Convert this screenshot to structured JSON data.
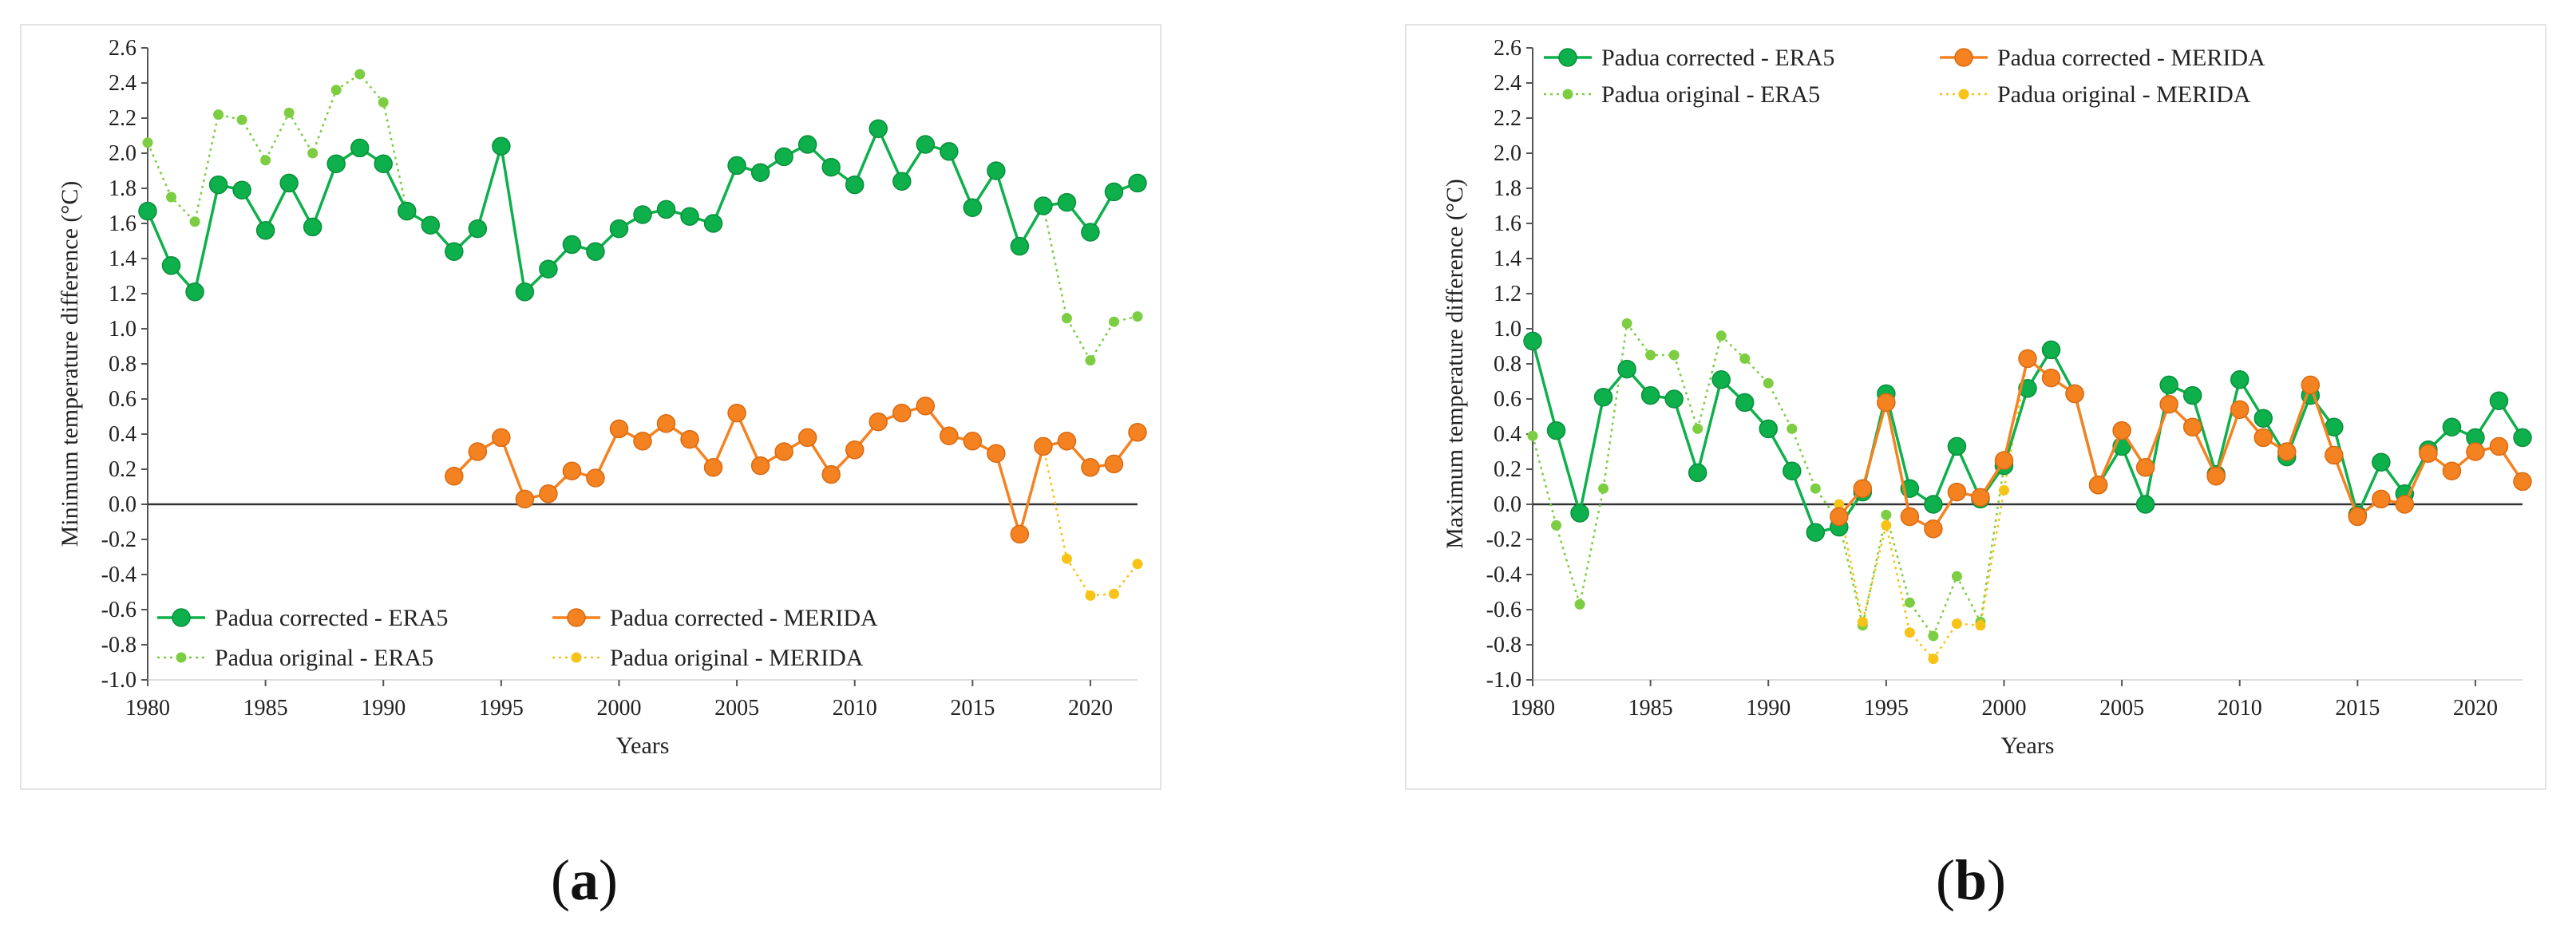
{
  "colors": {
    "era5_corrected": "#0db04b",
    "merida_corrected": "#f58220",
    "era5_original": "#7ccd41",
    "merida_original": "#f7c316",
    "axis": "#555555",
    "zero_line": "#333333"
  },
  "labels": {
    "a": "(a)",
    "a_letter": "a",
    "b": "(b)",
    "b_letter": "b"
  },
  "chart_data": [
    {
      "type": "line",
      "panel": "a",
      "xlabel": "Years",
      "ylabel": "Minimum temperature difference (°C)",
      "xlim": [
        1980,
        2022
      ],
      "ylim": [
        -1.0,
        2.6
      ],
      "y_step": 0.2,
      "x_ticks": [
        1980,
        1985,
        1990,
        1995,
        2000,
        2005,
        2010,
        2015,
        2020
      ],
      "y_ticks": [
        "-1.0",
        "-0.8",
        "-0.6",
        "-0.4",
        "-0.2",
        "0.0",
        "0.2",
        "0.4",
        "0.6",
        "0.8",
        "1.0",
        "1.2",
        "1.4",
        "1.6",
        "1.8",
        "2.0",
        "2.2",
        "2.4",
        "2.6"
      ],
      "grid": false,
      "legend_position": "bottom-left",
      "series": [
        {
          "name": "Padua corrected - ERA5",
          "style": "corrected-era5",
          "start": 1980,
          "values": [
            1.67,
            1.36,
            1.21,
            1.82,
            1.79,
            1.56,
            1.83,
            1.58,
            1.94,
            2.03,
            1.94,
            1.67,
            1.59,
            1.44,
            1.57,
            2.04,
            1.21,
            1.34,
            1.48,
            1.44,
            1.57,
            1.65,
            1.68,
            1.64,
            1.6,
            1.93,
            1.89,
            1.98,
            2.05,
            1.92,
            1.82,
            2.14,
            1.84,
            2.05,
            2.01,
            1.69,
            1.9,
            1.47,
            1.7,
            1.72,
            1.55,
            1.78,
            1.83
          ]
        },
        {
          "name": "Padua corrected - MERIDA",
          "style": "corrected-merida",
          "start": 1993,
          "values": [
            0.16,
            0.3,
            0.38,
            0.03,
            0.06,
            0.19,
            0.15,
            0.43,
            0.36,
            0.46,
            0.37,
            0.21,
            0.52,
            0.22,
            0.3,
            0.38,
            0.17,
            0.31,
            0.47,
            0.52,
            0.56,
            0.39,
            0.36,
            0.29,
            -0.17,
            0.33,
            0.36,
            0.21,
            0.23,
            0.41
          ]
        },
        {
          "name": "Padua original - ERA5",
          "style": "original-era5",
          "start": 1980,
          "values": [
            2.06,
            1.75,
            1.61,
            2.22,
            2.19,
            1.96,
            2.23,
            2.0,
            2.36,
            2.45,
            2.29,
            1.67,
            1.59,
            1.44,
            1.57,
            2.04,
            1.21,
            1.34,
            1.48,
            1.44,
            1.57,
            1.65,
            1.68,
            1.64,
            1.6,
            1.93,
            1.89,
            1.98,
            2.05,
            1.92,
            1.82,
            2.14,
            1.84,
            2.05,
            2.01,
            1.69,
            1.9,
            1.47,
            1.7,
            1.06,
            0.82,
            1.04,
            1.07
          ]
        },
        {
          "name": "Padua original - MERIDA",
          "style": "original-merida",
          "start": 1993,
          "values": [
            0.16,
            0.3,
            0.38,
            0.03,
            0.06,
            0.19,
            0.15,
            0.43,
            0.36,
            0.46,
            0.37,
            0.21,
            0.52,
            0.22,
            0.3,
            0.38,
            0.17,
            0.31,
            0.47,
            0.52,
            0.56,
            0.39,
            0.36,
            0.29,
            -0.17,
            0.33,
            -0.31,
            -0.52,
            -0.51,
            -0.34
          ]
        }
      ]
    },
    {
      "type": "line",
      "panel": "b",
      "xlabel": "Years",
      "ylabel": "Maximum temperature difference (°C)",
      "xlim": [
        1980,
        2022
      ],
      "ylim": [
        -1.0,
        2.6
      ],
      "y_step": 0.2,
      "x_ticks": [
        1980,
        1985,
        1990,
        1995,
        2000,
        2005,
        2010,
        2015,
        2020
      ],
      "y_ticks": [
        "-1.0",
        "-0.8",
        "-0.6",
        "-0.4",
        "-0.2",
        "0.0",
        "0.2",
        "0.4",
        "0.6",
        "0.8",
        "1.0",
        "1.2",
        "1.4",
        "1.6",
        "1.8",
        "2.0",
        "2.2",
        "2.4",
        "2.6"
      ],
      "grid": false,
      "legend_position": "top-left",
      "series": [
        {
          "name": "Padua corrected - ERA5",
          "style": "corrected-era5",
          "start": 1980,
          "values": [
            0.93,
            0.42,
            -0.05,
            0.61,
            0.77,
            0.62,
            0.6,
            0.18,
            0.71,
            0.58,
            0.43,
            0.19,
            -0.16,
            -0.13,
            0.07,
            0.63,
            0.09,
            0.0,
            0.33,
            0.03,
            0.22,
            0.66,
            0.88,
            0.63,
            0.11,
            0.33,
            0.0,
            0.68,
            0.62,
            0.17,
            0.71,
            0.49,
            0.27,
            0.62,
            0.44,
            -0.06,
            0.24,
            0.06,
            0.31,
            0.44,
            0.38,
            0.59,
            0.38
          ]
        },
        {
          "name": "Padua corrected - MERIDA",
          "style": "corrected-merida",
          "start": 1993,
          "values": [
            -0.07,
            0.09,
            0.58,
            -0.07,
            -0.14,
            0.07,
            0.04,
            0.25,
            0.83,
            0.72,
            0.63,
            0.11,
            0.42,
            0.21,
            0.57,
            0.44,
            0.16,
            0.54,
            0.38,
            0.3,
            0.68,
            0.28,
            -0.07,
            0.03,
            0.0,
            0.29,
            0.19,
            0.3,
            0.33,
            0.13
          ]
        },
        {
          "name": "Padua original - ERA5",
          "style": "original-era5",
          "start": 1980,
          "values": [
            0.39,
            -0.12,
            -0.57,
            0.09,
            1.03,
            0.85,
            0.85,
            0.43,
            0.96,
            0.83,
            0.69,
            0.43,
            0.09,
            -0.1,
            -0.69,
            -0.06,
            -0.56,
            -0.75,
            -0.41,
            -0.67,
            0.22,
            0.66,
            0.88,
            0.63,
            0.11,
            0.33,
            0.0,
            0.68,
            0.62,
            0.17,
            0.71,
            0.49,
            0.27,
            0.62,
            0.44,
            -0.06,
            0.24,
            0.06,
            0.31,
            0.44,
            0.38,
            0.59,
            0.38
          ]
        },
        {
          "name": "Padua original - MERIDA",
          "style": "original-merida",
          "start": 1993,
          "values": [
            0.0,
            -0.67,
            -0.12,
            -0.73,
            -0.88,
            -0.68,
            -0.69,
            0.08,
            0.83,
            0.72,
            0.63,
            0.11,
            0.42,
            0.21,
            0.57,
            0.44,
            0.16,
            0.54,
            0.38,
            0.3,
            0.68,
            0.28,
            -0.07,
            0.03,
            0.0,
            0.29,
            0.19,
            0.3,
            0.33,
            0.13
          ]
        }
      ]
    }
  ]
}
